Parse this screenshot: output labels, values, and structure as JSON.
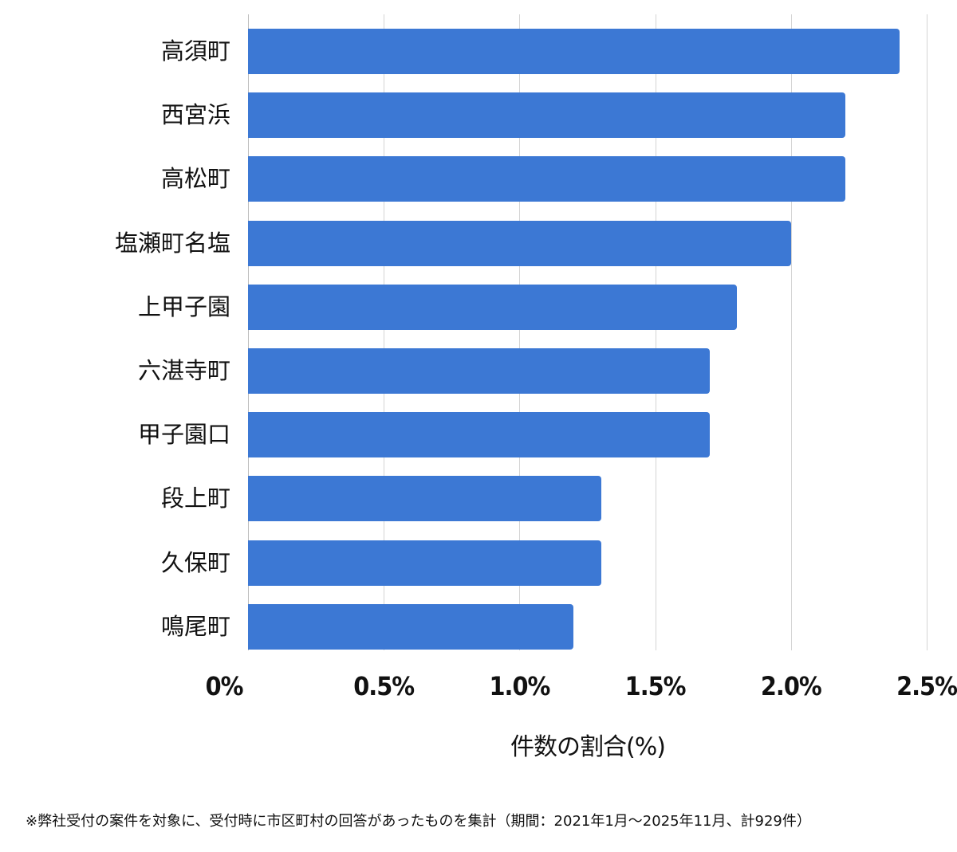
{
  "chart_data": {
    "type": "bar",
    "orientation": "horizontal",
    "categories": [
      "高須町",
      "西宮浜",
      "高松町",
      "塩瀬町名塩",
      "上甲子園",
      "六湛寺町",
      "甲子園口",
      "段上町",
      "久保町",
      "鳴尾町"
    ],
    "values": [
      2.4,
      2.2,
      2.2,
      2.0,
      1.8,
      1.7,
      1.7,
      1.3,
      1.3,
      1.2
    ],
    "title": "",
    "xlabel": "件数の割合(%)",
    "ylabel": "",
    "xlim": [
      0,
      2.5
    ],
    "xticks": [
      "0%",
      "0.5%",
      "1.0%",
      "1.5%",
      "2.0%",
      "2.5%"
    ],
    "grid": true,
    "legend": null,
    "bar_color": "#3c78d4"
  },
  "footnote": "※弊社受付の案件を対象に、受付時に市区町村の回答があったものを集計（期間：2021年1月～2025年11月、計929件）"
}
